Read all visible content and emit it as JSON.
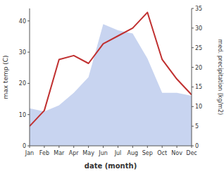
{
  "chart_data": {
    "type": "line",
    "xlabel": "date (month)",
    "ylabel": "max temp (C)",
    "y2label": "med. precipitation (kg/m2)",
    "categories": [
      "Jan",
      "Feb",
      "Mar",
      "Apr",
      "May",
      "Jun",
      "Jul",
      "Aug",
      "Sep",
      "Oct",
      "Nov",
      "Dec"
    ],
    "series": [
      {
        "type": "area",
        "color": "#c8d4f0",
        "values": [
          12,
          11,
          13,
          17,
          22,
          39,
          37,
          36,
          28,
          17,
          17,
          16
        ]
      },
      {
        "type": "line",
        "color": "#c03030",
        "axis": "y2",
        "values": [
          5,
          9,
          22,
          23,
          21,
          26,
          28,
          30,
          34,
          22,
          17,
          13
        ]
      }
    ],
    "ylim": [
      0,
      44
    ],
    "yticks": [
      0,
      10,
      20,
      30,
      40
    ],
    "y2lim": [
      0,
      35
    ],
    "y2ticks": [
      0,
      5,
      10,
      15,
      20,
      25,
      30,
      35
    ],
    "grid": false
  }
}
